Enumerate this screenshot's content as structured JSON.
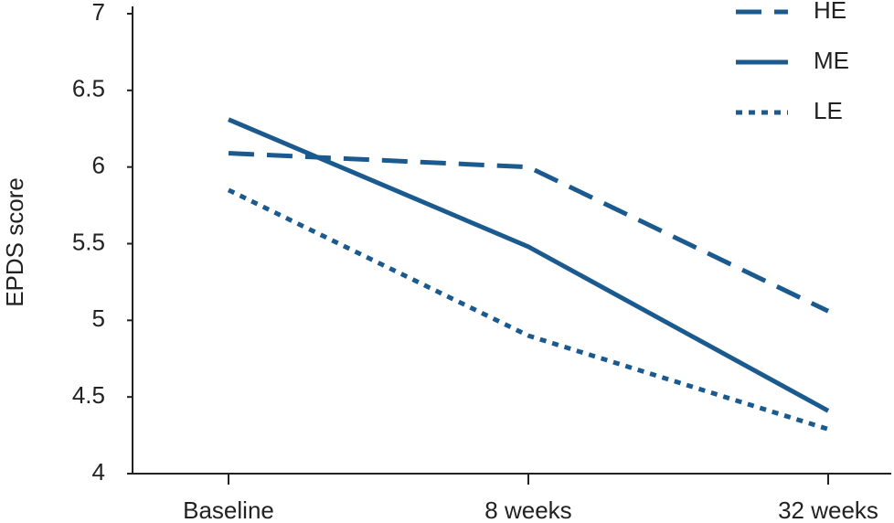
{
  "chart_data": {
    "type": "line",
    "y_label": "EPDS score",
    "categories": [
      "Baseline",
      "8 weeks",
      "32 weeks"
    ],
    "series": [
      {
        "name": "HE",
        "color": "#1b5a8e",
        "dash": "dashed",
        "values": [
          6.09,
          6.0,
          5.06
        ]
      },
      {
        "name": "ME",
        "color": "#1b5a8e",
        "dash": "solid",
        "values": [
          6.31,
          5.48,
          4.41
        ]
      },
      {
        "name": "LE",
        "color": "#1b5a8e",
        "dash": "dotted",
        "values": [
          5.85,
          4.9,
          4.29
        ]
      }
    ],
    "ylim": [
      4,
      7
    ],
    "yticks": [
      4,
      4.5,
      5,
      5.5,
      6,
      6.5,
      7
    ]
  }
}
